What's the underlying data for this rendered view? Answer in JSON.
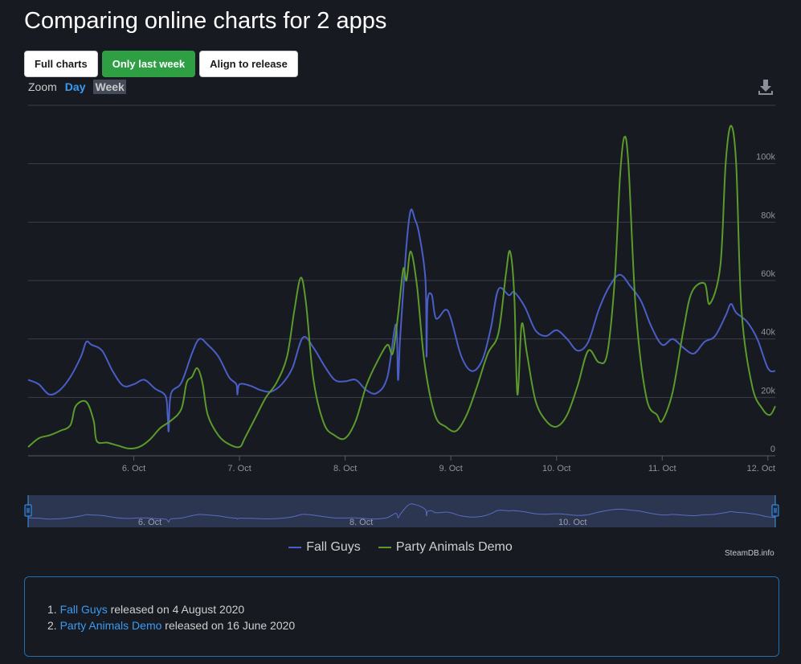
{
  "page": {
    "title": "Comparing online charts for 2 apps"
  },
  "buttons": [
    {
      "label": "Full charts",
      "active": false
    },
    {
      "label": "Only last week",
      "active": true
    },
    {
      "label": "Align to release",
      "active": false
    }
  ],
  "zoom": {
    "label": "Zoom",
    "day": "Day",
    "week": "Week",
    "selected": "Week"
  },
  "legend": {
    "credit": "SteamDB.info"
  },
  "navigator": {
    "tick_labels": [
      "6. Oct",
      "8. Oct",
      "10. Oct"
    ]
  },
  "releases": [
    {
      "name": "Fall Guys",
      "text": " released on 4 August 2020"
    },
    {
      "name": "Party Animals Demo",
      "text": " released on 16 June 2020"
    }
  ],
  "chart_data": {
    "type": "line",
    "x_unit": "days (Oct 2020)",
    "xlim": [
      5.0,
      12.07
    ],
    "ylim": [
      0,
      120000
    ],
    "x_ticks": [
      6,
      7,
      8,
      9,
      10,
      11,
      12
    ],
    "x_tick_labels": [
      "6. Oct",
      "7. Oct",
      "8. Oct",
      "9. Oct",
      "10. Oct",
      "11. Oct",
      "12. Oct"
    ],
    "y_ticks": [
      0,
      20000,
      40000,
      60000,
      80000,
      100000
    ],
    "y_tick_labels": [
      "0",
      "20k",
      "40k",
      "60k",
      "80k",
      "100k"
    ],
    "grid": true,
    "legend_position": "bottom-center",
    "series": [
      {
        "name": "Fall Guys",
        "color": "#4a5ec7",
        "points": [
          [
            5.0,
            26000
          ],
          [
            5.1,
            24500
          ],
          [
            5.2,
            21000
          ],
          [
            5.3,
            22500
          ],
          [
            5.4,
            27000
          ],
          [
            5.5,
            34000
          ],
          [
            5.55,
            39000
          ],
          [
            5.6,
            38000
          ],
          [
            5.7,
            36000
          ],
          [
            5.8,
            29000
          ],
          [
            5.9,
            24000
          ],
          [
            6.0,
            24500
          ],
          [
            6.1,
            26000
          ],
          [
            6.2,
            23000
          ],
          [
            6.3,
            20500
          ],
          [
            6.32,
            14000
          ],
          [
            6.33,
            8500
          ],
          [
            6.35,
            21000
          ],
          [
            6.45,
            25000
          ],
          [
            6.55,
            35000
          ],
          [
            6.62,
            40000
          ],
          [
            6.7,
            38000
          ],
          [
            6.8,
            34000
          ],
          [
            6.9,
            27000
          ],
          [
            6.97,
            24500
          ],
          [
            6.98,
            21000
          ],
          [
            7.0,
            24500
          ],
          [
            7.1,
            24000
          ],
          [
            7.2,
            22500
          ],
          [
            7.3,
            22000
          ],
          [
            7.4,
            24500
          ],
          [
            7.5,
            30000
          ],
          [
            7.6,
            40500
          ],
          [
            7.7,
            37000
          ],
          [
            7.8,
            31000
          ],
          [
            7.9,
            26000
          ],
          [
            8.0,
            25500
          ],
          [
            8.1,
            26000
          ],
          [
            8.2,
            22500
          ],
          [
            8.3,
            21500
          ],
          [
            8.4,
            27000
          ],
          [
            8.48,
            45000
          ],
          [
            8.5,
            26000
          ],
          [
            8.52,
            40000
          ],
          [
            8.58,
            72000
          ],
          [
            8.62,
            84000
          ],
          [
            8.66,
            81000
          ],
          [
            8.7,
            76000
          ],
          [
            8.76,
            60000
          ],
          [
            8.77,
            34000
          ],
          [
            8.78,
            53000
          ],
          [
            8.82,
            55000
          ],
          [
            8.86,
            47000
          ],
          [
            8.95,
            50000
          ],
          [
            9.0,
            47000
          ],
          [
            9.1,
            34000
          ],
          [
            9.2,
            29000
          ],
          [
            9.3,
            33000
          ],
          [
            9.38,
            44000
          ],
          [
            9.45,
            57000
          ],
          [
            9.55,
            55000
          ],
          [
            9.6,
            56000
          ],
          [
            9.7,
            51000
          ],
          [
            9.8,
            43000
          ],
          [
            9.9,
            41000
          ],
          [
            10.0,
            43000
          ],
          [
            10.1,
            40000
          ],
          [
            10.2,
            36000
          ],
          [
            10.3,
            39000
          ],
          [
            10.4,
            50000
          ],
          [
            10.5,
            58000
          ],
          [
            10.6,
            62000
          ],
          [
            10.7,
            58000
          ],
          [
            10.8,
            53000
          ],
          [
            10.9,
            44000
          ],
          [
            11.0,
            38000
          ],
          [
            11.1,
            40000
          ],
          [
            11.2,
            37000
          ],
          [
            11.3,
            35000
          ],
          [
            11.4,
            39000
          ],
          [
            11.5,
            41000
          ],
          [
            11.6,
            48000
          ],
          [
            11.65,
            52000
          ],
          [
            11.7,
            49000
          ],
          [
            11.8,
            46000
          ],
          [
            11.9,
            40000
          ],
          [
            12.0,
            30000
          ],
          [
            12.07,
            29000
          ]
        ]
      },
      {
        "name": "Party Animals Demo",
        "color": "#5b9a2b",
        "points": [
          [
            5.0,
            3000
          ],
          [
            5.1,
            6000
          ],
          [
            5.2,
            7000
          ],
          [
            5.3,
            8500
          ],
          [
            5.4,
            10500
          ],
          [
            5.45,
            17000
          ],
          [
            5.55,
            18500
          ],
          [
            5.62,
            12000
          ],
          [
            5.65,
            5000
          ],
          [
            5.75,
            4500
          ],
          [
            5.85,
            3500
          ],
          [
            5.95,
            2500
          ],
          [
            6.05,
            3000
          ],
          [
            6.15,
            5500
          ],
          [
            6.25,
            9500
          ],
          [
            6.35,
            12000
          ],
          [
            6.45,
            16000
          ],
          [
            6.5,
            25000
          ],
          [
            6.55,
            27000
          ],
          [
            6.6,
            30000
          ],
          [
            6.65,
            25000
          ],
          [
            6.7,
            14000
          ],
          [
            6.8,
            7000
          ],
          [
            6.9,
            4000
          ],
          [
            7.0,
            3000
          ],
          [
            7.05,
            6000
          ],
          [
            7.15,
            13000
          ],
          [
            7.25,
            20000
          ],
          [
            7.35,
            25000
          ],
          [
            7.45,
            34000
          ],
          [
            7.52,
            50000
          ],
          [
            7.58,
            61000
          ],
          [
            7.63,
            52000
          ],
          [
            7.7,
            26000
          ],
          [
            7.8,
            11000
          ],
          [
            7.9,
            7000
          ],
          [
            8.0,
            6000
          ],
          [
            8.1,
            12000
          ],
          [
            8.2,
            24000
          ],
          [
            8.3,
            32000
          ],
          [
            8.4,
            38000
          ],
          [
            8.45,
            35000
          ],
          [
            8.5,
            48000
          ],
          [
            8.55,
            64000
          ],
          [
            8.58,
            60000
          ],
          [
            8.62,
            70000
          ],
          [
            8.68,
            58000
          ],
          [
            8.75,
            32000
          ],
          [
            8.85,
            14000
          ],
          [
            8.95,
            10000
          ],
          [
            9.05,
            8500
          ],
          [
            9.15,
            14000
          ],
          [
            9.25,
            24000
          ],
          [
            9.35,
            35000
          ],
          [
            9.45,
            42000
          ],
          [
            9.52,
            62000
          ],
          [
            9.56,
            70000
          ],
          [
            9.6,
            55000
          ],
          [
            9.63,
            21000
          ],
          [
            9.67,
            45000
          ],
          [
            9.72,
            35000
          ],
          [
            9.8,
            19000
          ],
          [
            9.9,
            12000
          ],
          [
            10.0,
            10000
          ],
          [
            10.1,
            14000
          ],
          [
            10.2,
            24000
          ],
          [
            10.3,
            36000
          ],
          [
            10.4,
            32000
          ],
          [
            10.48,
            35000
          ],
          [
            10.55,
            60000
          ],
          [
            10.6,
            95000
          ],
          [
            10.64,
            109000
          ],
          [
            10.68,
            100000
          ],
          [
            10.75,
            50000
          ],
          [
            10.85,
            20000
          ],
          [
            10.95,
            14000
          ],
          [
            11.0,
            12000
          ],
          [
            11.1,
            22000
          ],
          [
            11.2,
            43000
          ],
          [
            11.28,
            56000
          ],
          [
            11.4,
            59000
          ],
          [
            11.45,
            52000
          ],
          [
            11.55,
            65000
          ],
          [
            11.6,
            100000
          ],
          [
            11.65,
            113000
          ],
          [
            11.7,
            100000
          ],
          [
            11.75,
            50000
          ],
          [
            11.85,
            24000
          ],
          [
            11.95,
            16000
          ],
          [
            12.02,
            14000
          ],
          [
            12.07,
            17000
          ]
        ]
      }
    ]
  }
}
